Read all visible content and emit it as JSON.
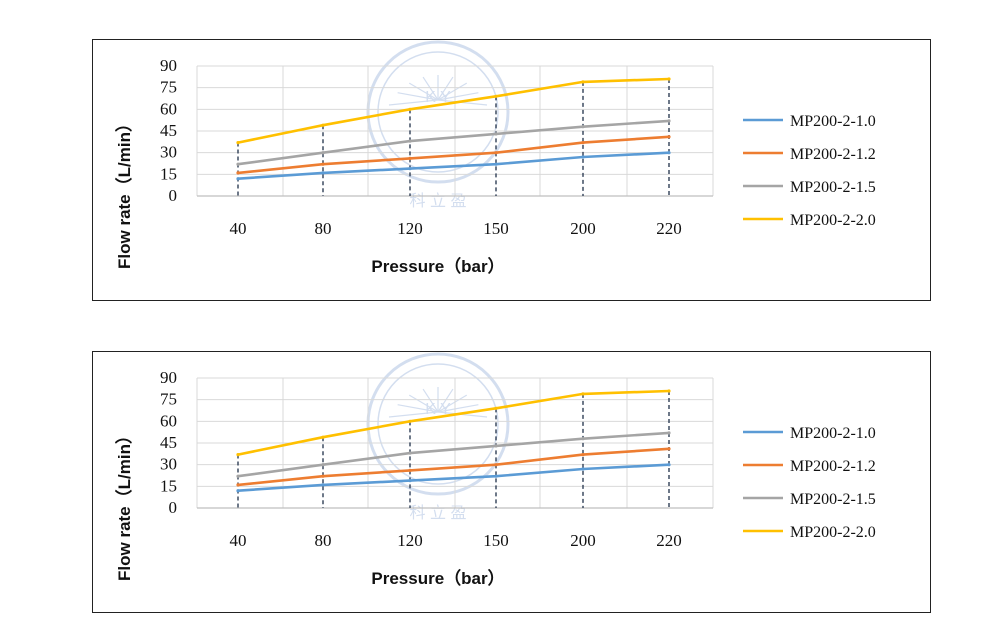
{
  "colors": {
    "series_colors": [
      "#5B9BD5",
      "#ED7D31",
      "#A5A5A5",
      "#FFC000"
    ],
    "grid": "#d9d9d9",
    "dashed": "#2F3E55",
    "watermark": "#c9d6ec"
  },
  "watermark": {
    "chars": "K Y",
    "label": "科 立 盈"
  },
  "chart_data": [
    {
      "type": "line",
      "xlabel": "Pressure（bar）",
      "ylabel": "Flow rate（L/min）",
      "categories": [
        "40",
        "80",
        "120",
        "150",
        "200",
        "220"
      ],
      "yticks": [
        "0",
        "15",
        "30",
        "45",
        "60",
        "75",
        "90"
      ],
      "ylim": [
        0,
        90
      ],
      "grid": true,
      "legend_position": "right",
      "series": [
        {
          "name": "MP200-2-1.0",
          "values": [
            12,
            16,
            19,
            22,
            27,
            30
          ]
        },
        {
          "name": "MP200-2-1.2",
          "values": [
            16,
            22,
            26,
            30,
            37,
            41
          ]
        },
        {
          "name": "MP200-2-1.5",
          "values": [
            22,
            30,
            38,
            43,
            48,
            52
          ]
        },
        {
          "name": "MP200-2-2.0",
          "values": [
            37,
            49,
            60,
            69,
            79,
            81
          ]
        }
      ]
    },
    {
      "type": "line",
      "xlabel": "Pressure（bar）",
      "ylabel": "Flow rate（L/min）",
      "categories": [
        "40",
        "80",
        "120",
        "150",
        "200",
        "220"
      ],
      "yticks": [
        "0",
        "15",
        "30",
        "45",
        "60",
        "75",
        "90"
      ],
      "ylim": [
        0,
        90
      ],
      "grid": true,
      "legend_position": "right",
      "series": [
        {
          "name": "MP200-2-1.0",
          "values": [
            12,
            16,
            19,
            22,
            27,
            30
          ]
        },
        {
          "name": "MP200-2-1.2",
          "values": [
            16,
            22,
            26,
            30,
            37,
            41
          ]
        },
        {
          "name": "MP200-2-1.5",
          "values": [
            22,
            30,
            38,
            43,
            48,
            52
          ]
        },
        {
          "name": "MP200-2-2.0",
          "values": [
            37,
            49,
            60,
            69,
            79,
            81
          ]
        }
      ]
    }
  ]
}
